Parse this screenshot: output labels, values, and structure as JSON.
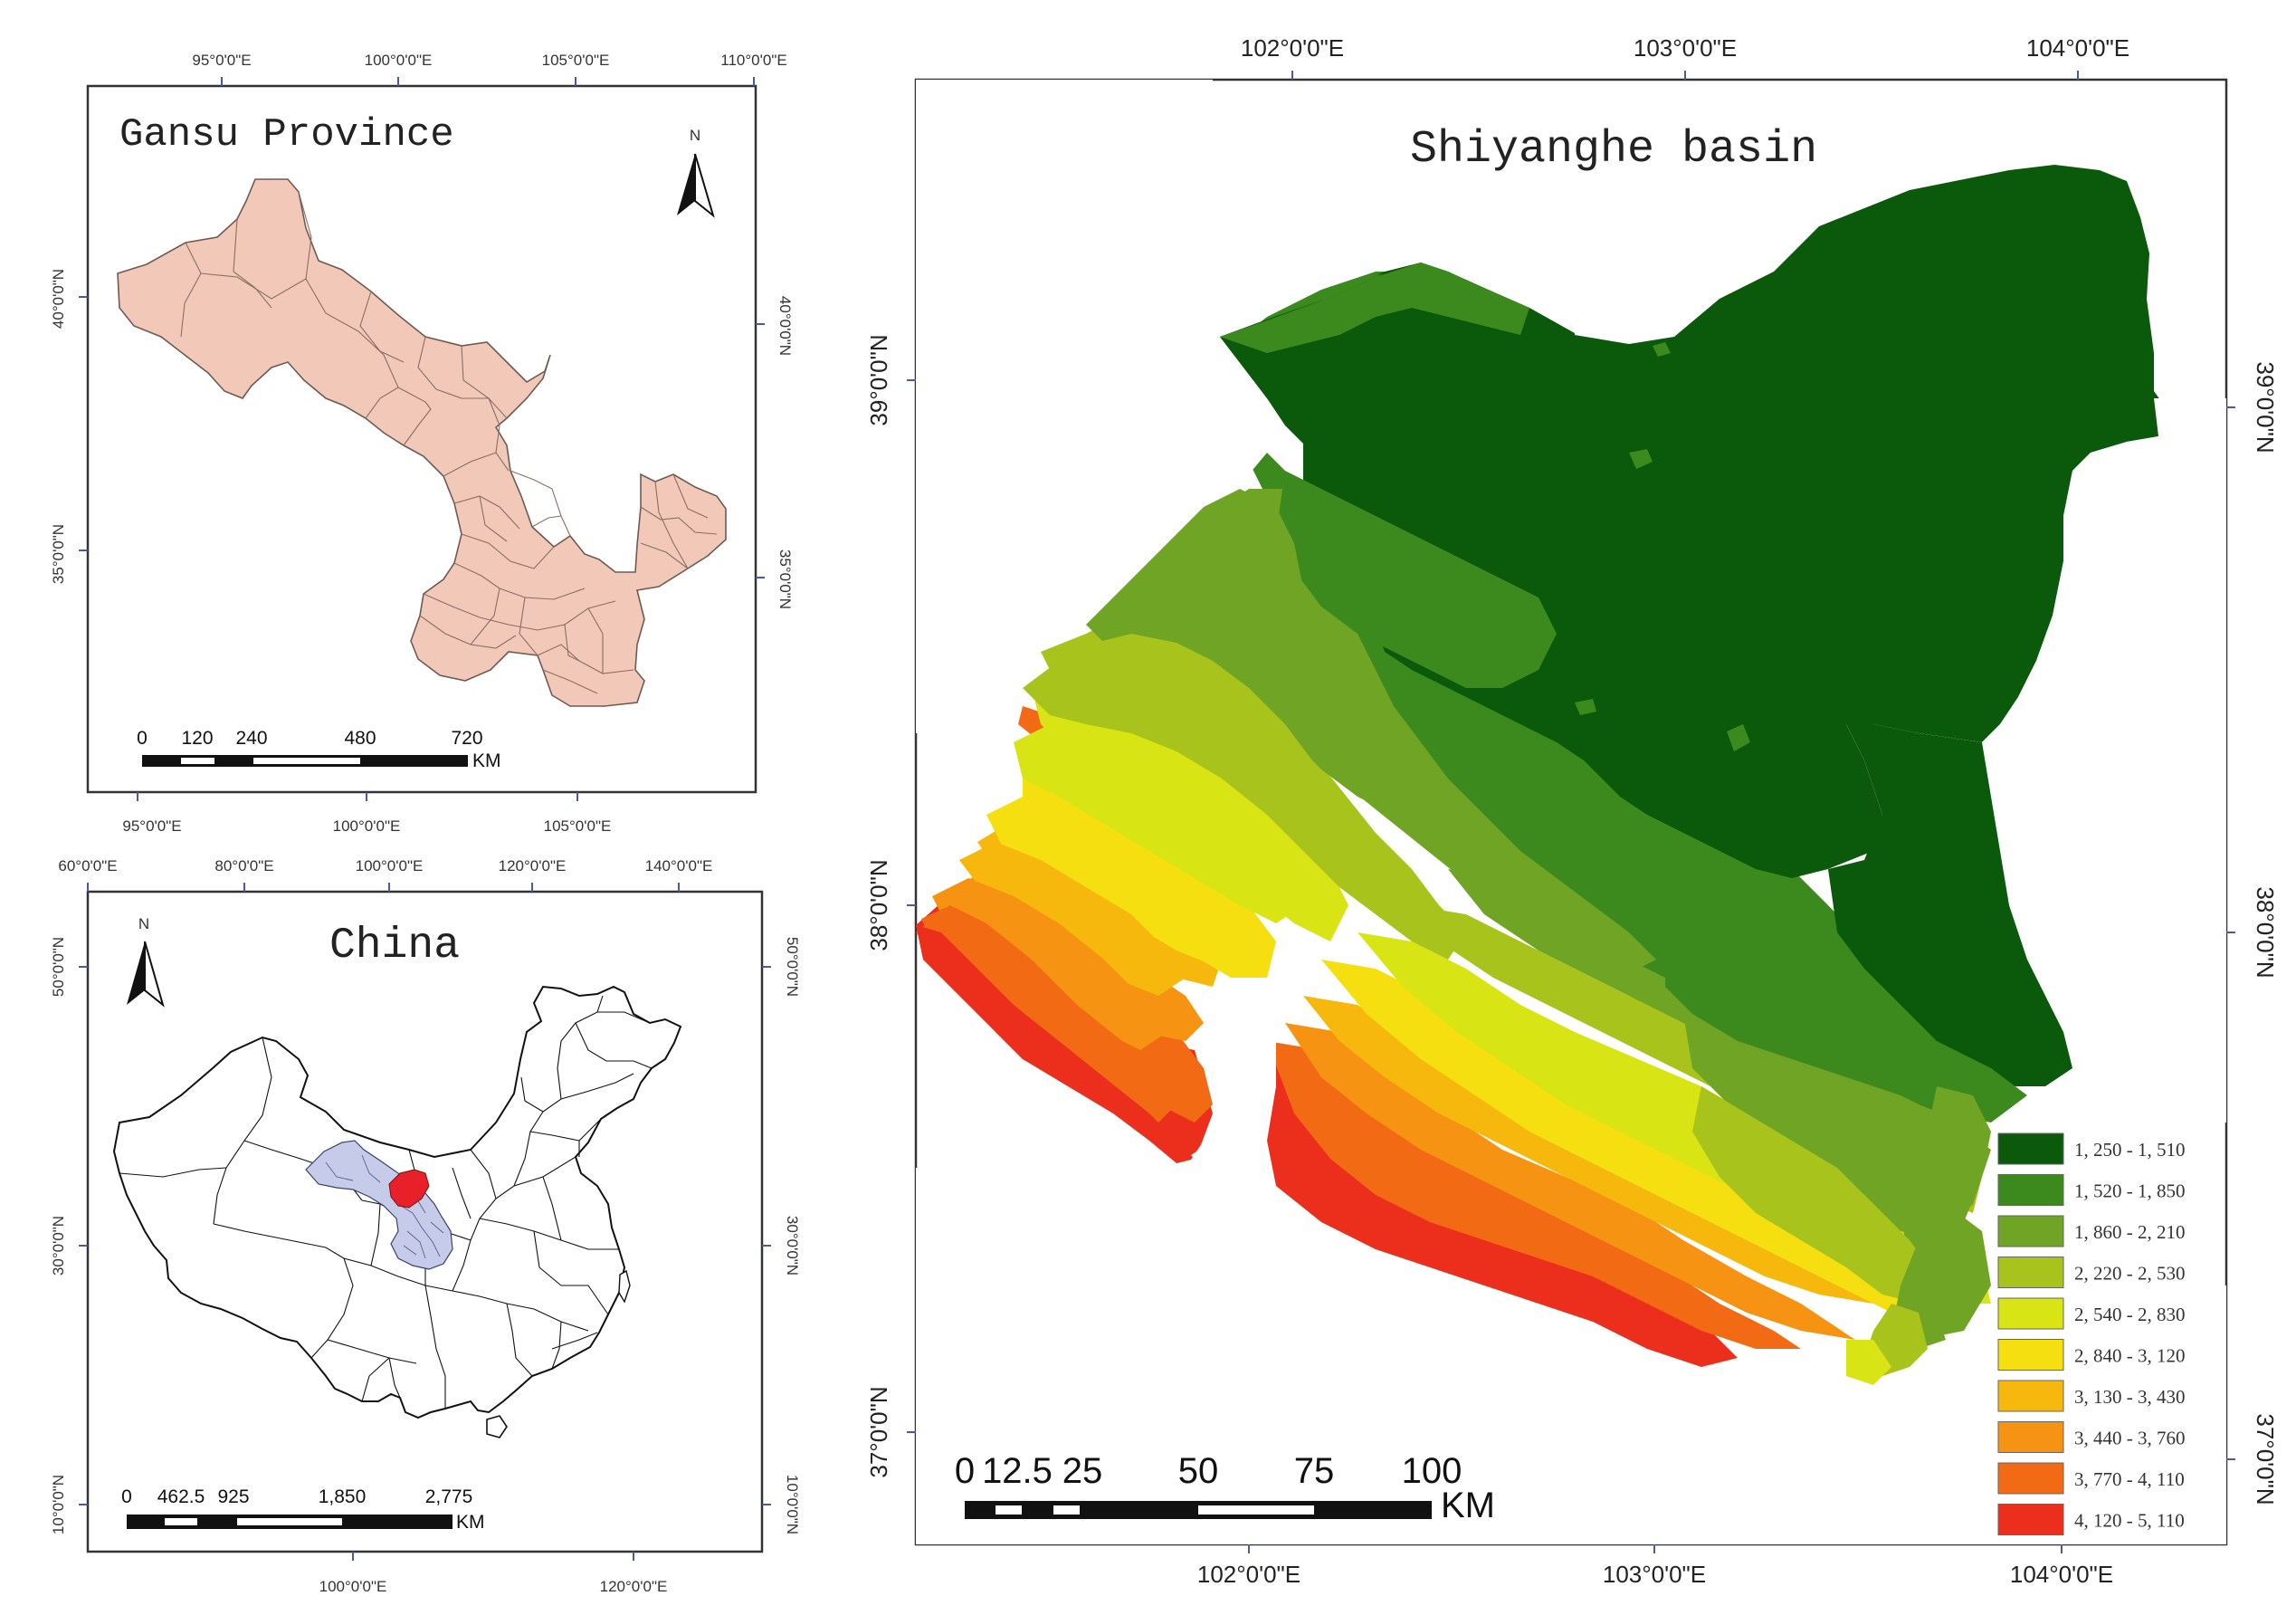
{
  "gansu": {
    "title": "Gansu Province",
    "top_ticks": [
      "95°0'0\"E",
      "100°0'0\"E",
      "105°0'0\"E",
      "110°0'0\"E"
    ],
    "bottom_ticks": [
      "95°0'0\"E",
      "100°0'0\"E",
      "105°0'0\"E"
    ],
    "left_ticks": [
      "40°0'0\"N",
      "35°0'0\"N"
    ],
    "right_ticks": [
      "40°0'0\"N",
      "35°0'0\"N"
    ],
    "scale_labels": [
      "0",
      "120",
      "240",
      "480",
      "720"
    ],
    "scale_unit": "KM",
    "north": "N",
    "fill_color": "#f2c9b8"
  },
  "china": {
    "title": "China",
    "top_ticks": [
      "60°0'0\"E",
      "80°0'0\"E",
      "100°0'0\"E",
      "120°0'0\"E",
      "140°0'0\"E"
    ],
    "bottom_ticks": [
      "100°0'0\"E",
      "120°0'0\"E"
    ],
    "left_ticks": [
      "50°0'0\"N",
      "30°0'0\"N",
      "10°0'0\"N"
    ],
    "right_ticks": [
      "50°0'0\"N",
      "30°0'0\"N",
      "10°0'0\"N"
    ],
    "scale_labels": [
      "0",
      "462.5",
      "925",
      "1,850",
      "2,775"
    ],
    "scale_unit": "KM",
    "north": "N",
    "gansu_color": "#c5cbe9",
    "basin_color": "#e8202a"
  },
  "basin": {
    "title": "Shiyanghe basin",
    "top_ticks": [
      "102°0'0\"E",
      "103°0'0\"E",
      "104°0'0\"E"
    ],
    "bottom_ticks": [
      "102°0'0\"E",
      "103°0'0\"E",
      "104°0'0\"E"
    ],
    "left_ticks": [
      "39°0'0\"N",
      "38°0'0\"N",
      "37°0'0\"N"
    ],
    "right_ticks": [
      "39°0'0\"N",
      "38°0'0\"N",
      "37°0'0\"N"
    ],
    "scale_labels": [
      "0",
      "12.5",
      "25",
      "50",
      "75",
      "100"
    ],
    "scale_unit": "KM",
    "legend": [
      {
        "label": "1, 250 - 1, 510",
        "color": "#0b5a0b"
      },
      {
        "label": "1, 520 - 1, 850",
        "color": "#3c8a1e"
      },
      {
        "label": "1, 860 - 2, 210",
        "color": "#6fa424"
      },
      {
        "label": "2, 220 - 2, 530",
        "color": "#a8c41c"
      },
      {
        "label": "2, 540 - 2, 830",
        "color": "#d8e413"
      },
      {
        "label": "2, 840 - 3, 120",
        "color": "#f5df10"
      },
      {
        "label": "3, 130 - 3, 430",
        "color": "#f7b80e"
      },
      {
        "label": "3, 440 - 3, 760",
        "color": "#f69312"
      },
      {
        "label": "3, 770 - 4, 110",
        "color": "#f26a14"
      },
      {
        "label": "4, 120 - 5, 110",
        "color": "#ec2f1c"
      }
    ]
  }
}
